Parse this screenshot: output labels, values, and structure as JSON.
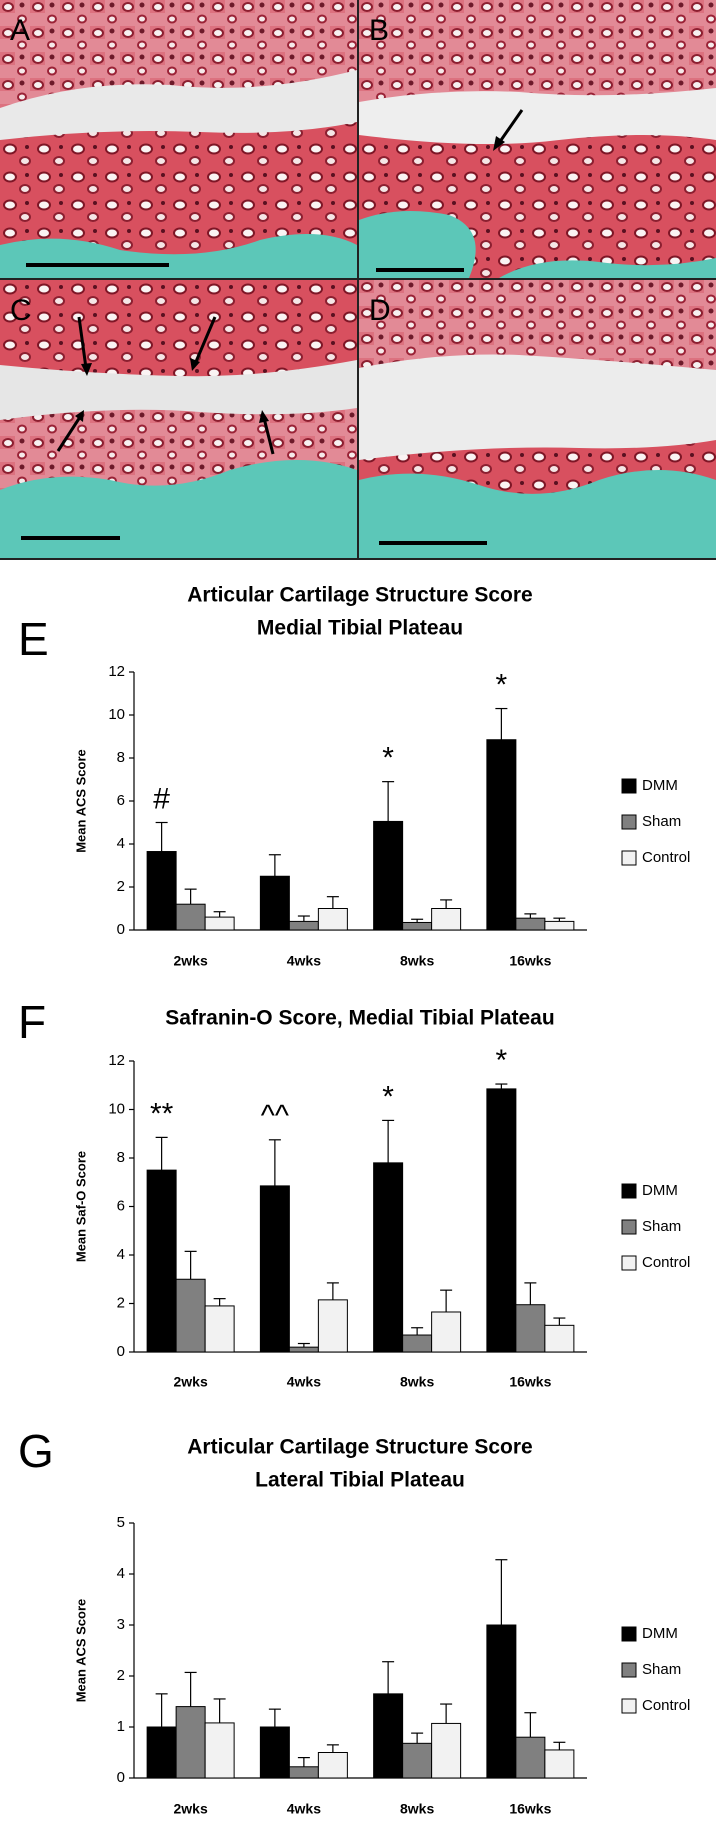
{
  "image_panels": {
    "labels": [
      "A",
      "B",
      "C",
      "D"
    ]
  },
  "chart_data": [
    {
      "type": "bar",
      "panel_label": "E",
      "title": "Articular Cartilage Structure Score",
      "subtitle": "Medial Tibial Plateau",
      "y_label": "Mean ACS Score",
      "categories": [
        "2wks",
        "4wks",
        "8wks",
        "16wks"
      ],
      "ylim": [
        0,
        12
      ],
      "yticks": [
        0,
        2,
        4,
        6,
        8,
        10,
        12
      ],
      "series": [
        {
          "name": "DMM",
          "color": "#000000",
          "values": [
            3.65,
            2.5,
            5.05,
            8.85
          ],
          "errors": [
            1.35,
            1.0,
            1.85,
            1.45
          ]
        },
        {
          "name": "Sham",
          "color": "#808080",
          "values": [
            1.2,
            0.4,
            0.35,
            0.55
          ],
          "errors": [
            0.7,
            0.25,
            0.15,
            0.2
          ]
        },
        {
          "name": "Control",
          "color": "#f2f2f2",
          "values": [
            0.6,
            1.0,
            1.0,
            0.4
          ],
          "errors": [
            0.25,
            0.55,
            0.4,
            0.15
          ]
        }
      ],
      "annotations": [
        {
          "text": "#",
          "category": "2wks"
        },
        {
          "text": "*",
          "category": "8wks"
        },
        {
          "text": "*",
          "category": "16wks"
        }
      ]
    },
    {
      "type": "bar",
      "panel_label": "F",
      "title": "Safranin-O Score, Medial Tibial Plateau",
      "y_label": "Mean Saf-O Score",
      "categories": [
        "2wks",
        "4wks",
        "8wks",
        "16wks"
      ],
      "ylim": [
        0,
        12
      ],
      "yticks": [
        0,
        2,
        4,
        6,
        8,
        10,
        12
      ],
      "series": [
        {
          "name": "DMM",
          "color": "#000000",
          "values": [
            7.5,
            6.85,
            7.8,
            10.85
          ],
          "errors": [
            1.35,
            1.9,
            1.75,
            0.2
          ]
        },
        {
          "name": "Sham",
          "color": "#808080",
          "values": [
            3.0,
            0.2,
            0.7,
            1.95
          ],
          "errors": [
            1.15,
            0.15,
            0.3,
            0.9
          ]
        },
        {
          "name": "Control",
          "color": "#f2f2f2",
          "values": [
            1.9,
            2.15,
            1.65,
            1.1
          ],
          "errors": [
            0.3,
            0.7,
            0.9,
            0.3
          ]
        }
      ],
      "annotations": [
        {
          "text": "**",
          "category": "2wks"
        },
        {
          "text": "^^",
          "category": "4wks"
        },
        {
          "text": "*",
          "category": "8wks"
        },
        {
          "text": "*",
          "category": "16wks"
        }
      ]
    },
    {
      "type": "bar",
      "panel_label": "G",
      "title": "Articular Cartilage Structure Score",
      "subtitle": "Lateral Tibial Plateau",
      "y_label": "Mean ACS Score",
      "categories": [
        "2wks",
        "4wks",
        "8wks",
        "16wks"
      ],
      "ylim": [
        0,
        5
      ],
      "yticks": [
        0,
        1,
        2,
        3,
        4,
        5
      ],
      "series": [
        {
          "name": "DMM",
          "color": "#000000",
          "values": [
            1.0,
            1.0,
            1.65,
            3.0
          ],
          "errors": [
            0.65,
            0.35,
            0.63,
            1.28
          ]
        },
        {
          "name": "Sham",
          "color": "#808080",
          "values": [
            1.4,
            0.22,
            0.68,
            0.8
          ],
          "errors": [
            0.67,
            0.18,
            0.2,
            0.48
          ]
        },
        {
          "name": "Control",
          "color": "#f2f2f2",
          "values": [
            1.08,
            0.5,
            1.07,
            0.55
          ],
          "errors": [
            0.47,
            0.15,
            0.38,
            0.15
          ]
        }
      ],
      "annotations": []
    }
  ]
}
